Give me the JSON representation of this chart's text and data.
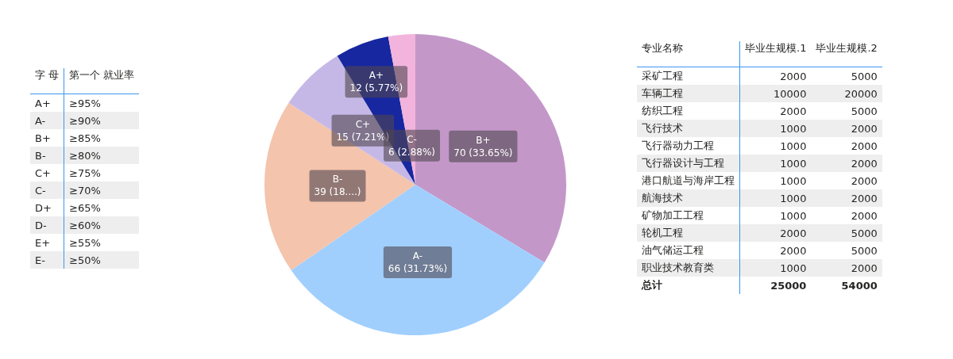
{
  "chart_data": [
    {
      "type": "other",
      "categories": [
        "字 母",
        "第一个 就业率"
      ],
      "cells": [
        [
          "A+",
          "≥95%"
        ],
        [
          "A-",
          "≥90%"
        ],
        [
          "B+",
          "≥85%"
        ],
        [
          "B-",
          "≥80%"
        ],
        [
          "C+",
          "≥75%"
        ],
        [
          "C-",
          "≥70%"
        ],
        [
          "D+",
          "≥65%"
        ],
        [
          "D-",
          "≥60%"
        ],
        [
          "E+",
          "≥55%"
        ],
        [
          "E-",
          "≥50%"
        ]
      ]
    },
    {
      "type": "pie",
      "categories": [
        "B+",
        "A-",
        "B-",
        "C+",
        "A+",
        "C-"
      ],
      "values": [
        70,
        66,
        39,
        15,
        12,
        6
      ],
      "colors": [
        "#c398c9",
        "#a0cffe",
        "#f4c4ad",
        "#c6b8e6",
        "#1727a0",
        "#f2b4dc"
      ],
      "value_labels": [
        "70 (33.65%)",
        "66 (31.73%)",
        "39 (18....)",
        "15 (7.21%)",
        "12 (5.77%)",
        "6 (2.88%)"
      ]
    },
    {
      "type": "other",
      "categories": [
        "专业名称",
        "毕业生规模.1",
        "毕业生规模.2"
      ],
      "cells": [
        [
          "采矿工程",
          "2000",
          "5000"
        ],
        [
          "车辆工程",
          "10000",
          "20000"
        ],
        [
          "纺织工程",
          "2000",
          "5000"
        ],
        [
          "飞行技术",
          "1000",
          "2000"
        ],
        [
          "飞行器动力工程",
          "1000",
          "2000"
        ],
        [
          "飞行器设计与工程",
          "1000",
          "2000"
        ],
        [
          "港口航道与海岸工程",
          "1000",
          "2000"
        ],
        [
          "航海技术",
          "1000",
          "2000"
        ],
        [
          "矿物加工工程",
          "1000",
          "2000"
        ],
        [
          "轮机工程",
          "2000",
          "5000"
        ],
        [
          "油气储运工程",
          "2000",
          "5000"
        ],
        [
          "职业技术教育类",
          "1000",
          "2000"
        ]
      ],
      "totals": [
        "总计",
        "25000",
        "54000"
      ]
    }
  ]
}
